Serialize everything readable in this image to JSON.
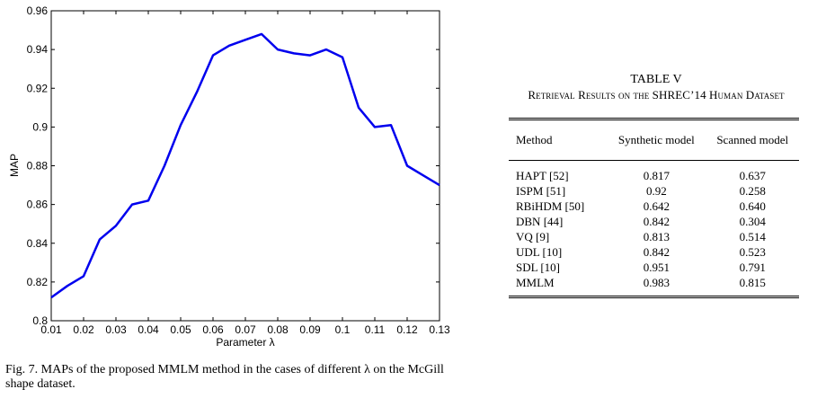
{
  "chart_data": {
    "type": "line",
    "title": "",
    "xlabel": "Parameter λ",
    "ylabel": "MAP",
    "xlim": [
      0.01,
      0.13
    ],
    "ylim": [
      0.8,
      0.96
    ],
    "xticks": [
      "0.01",
      "0.02",
      "0.03",
      "0.04",
      "0.05",
      "0.06",
      "0.07",
      "0.08",
      "0.09",
      "0.1",
      "0.11",
      "0.12",
      "0.13"
    ],
    "yticks": [
      "0.8",
      "0.82",
      "0.84",
      "0.86",
      "0.88",
      "0.9",
      "0.92",
      "0.94",
      "0.96"
    ],
    "grid": false,
    "line_color": "#0000ee",
    "x": [
      0.01,
      0.015,
      0.02,
      0.025,
      0.03,
      0.035,
      0.04,
      0.045,
      0.05,
      0.055,
      0.06,
      0.065,
      0.07,
      0.075,
      0.08,
      0.085,
      0.09,
      0.095,
      0.1,
      0.105,
      0.11,
      0.115,
      0.12,
      0.125,
      0.13
    ],
    "values": [
      0.812,
      0.818,
      0.823,
      0.842,
      0.849,
      0.86,
      0.862,
      0.88,
      0.901,
      0.918,
      0.937,
      0.942,
      0.945,
      0.948,
      0.94,
      0.938,
      0.937,
      0.94,
      0.936,
      0.91,
      0.9,
      0.901,
      0.88,
      0.875,
      0.87
    ]
  },
  "figure_caption": "Fig. 7.    MAPs of the proposed MMLM method in the cases of different λ on the McGill shape dataset.",
  "table": {
    "title": "TABLE V",
    "subtitle": "Retrieval Results on the SHREC’14 Human Dataset",
    "headers": [
      "Method",
      "Synthetic model",
      "Scanned model"
    ],
    "rows": [
      [
        "HAPT [52]",
        "0.817",
        "0.637"
      ],
      [
        "ISPM [51]",
        "0.92",
        "0.258"
      ],
      [
        "RBiHDM [50]",
        "0.642",
        "0.640"
      ],
      [
        "DBN [44]",
        "0.842",
        "0.304"
      ],
      [
        "VQ [9]",
        "0.813",
        "0.514"
      ],
      [
        "UDL [10]",
        "0.842",
        "0.523"
      ],
      [
        "SDL [10]",
        "0.951",
        "0.791"
      ],
      [
        "MMLM",
        "0.983",
        "0.815"
      ]
    ]
  }
}
